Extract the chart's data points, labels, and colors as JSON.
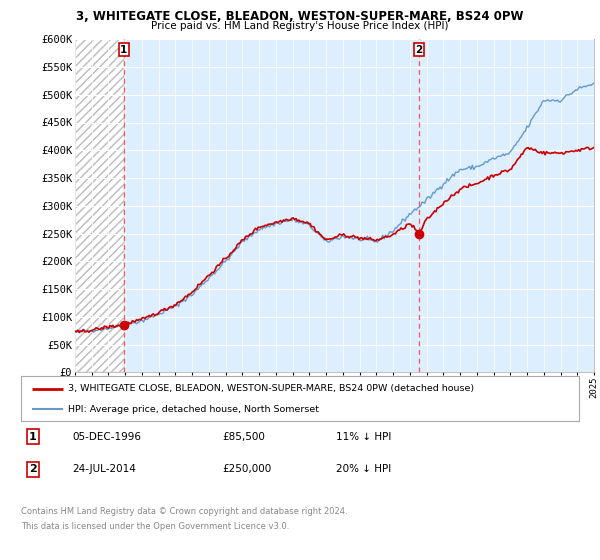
{
  "title1": "3, WHITEGATE CLOSE, BLEADON, WESTON-SUPER-MARE, BS24 0PW",
  "title2": "Price paid vs. HM Land Registry's House Price Index (HPI)",
  "ylabel_ticks": [
    "£0",
    "£50K",
    "£100K",
    "£150K",
    "£200K",
    "£250K",
    "£300K",
    "£350K",
    "£400K",
    "£450K",
    "£500K",
    "£550K",
    "£600K"
  ],
  "ytick_values": [
    0,
    50000,
    100000,
    150000,
    200000,
    250000,
    300000,
    350000,
    400000,
    450000,
    500000,
    550000,
    600000
  ],
  "year_start": 1994,
  "year_end": 2025,
  "vline1_year": 1996.92,
  "vline2_year": 2014.55,
  "marker1_year": 1996.92,
  "marker1_val": 85500,
  "marker2_year": 2014.55,
  "marker2_val": 250000,
  "legend_line1": "3, WHITEGATE CLOSE, BLEADON, WESTON-SUPER-MARE, BS24 0PW (detached house)",
  "legend_line2": "HPI: Average price, detached house, North Somerset",
  "footer1": "Contains HM Land Registry data © Crown copyright and database right 2024.",
  "footer2": "This data is licensed under the Open Government Licence v3.0.",
  "table1_date": "05-DEC-1996",
  "table1_price": "£85,500",
  "table1_hpi": "11% ↓ HPI",
  "table2_date": "24-JUL-2014",
  "table2_price": "£250,000",
  "table2_hpi": "20% ↓ HPI",
  "red_color": "#cc0000",
  "blue_color": "#6699cc",
  "bg_color": "#ddeeff",
  "hatch_color": "#bbbbbb",
  "grid_color": "#ffffff",
  "vline_color": "#ff5555"
}
